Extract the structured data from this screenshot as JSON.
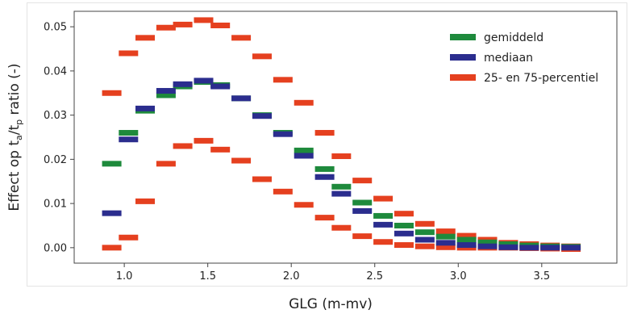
{
  "chart_data": {
    "type": "scatter",
    "marker": "horizontal-bar",
    "xlabel": "GLG (m-mv)",
    "ylabel_parts": [
      "Effect op t",
      "a",
      "/t",
      "p",
      " ratio (-)"
    ],
    "xlim": [
      0.7,
      3.95
    ],
    "ylim": [
      -0.0035,
      0.0535
    ],
    "xticks": [
      "1.0",
      "1.5",
      "2.0",
      "2.5",
      "3.0",
      "3.5"
    ],
    "xtick_values": [
      1.0,
      1.5,
      2.0,
      2.5,
      3.0,
      3.5
    ],
    "yticks": [
      "0.00",
      "0.01",
      "0.02",
      "0.03",
      "0.04",
      "0.05"
    ],
    "ytick_values": [
      0.0,
      0.01,
      0.02,
      0.03,
      0.04,
      0.05
    ],
    "grid": false,
    "legend_position": "top-right",
    "x": [
      0.925,
      1.025,
      1.125,
      1.25,
      1.35,
      1.475,
      1.575,
      1.7,
      1.825,
      1.95,
      2.075,
      2.2,
      2.3,
      2.425,
      2.55,
      2.675,
      2.8,
      2.925,
      3.05,
      3.175,
      3.3,
      3.425,
      3.55,
      3.675
    ],
    "series": [
      {
        "name": "gemiddeld",
        "color": "#1e8a3c",
        "values": [
          0.019,
          0.026,
          0.031,
          0.0345,
          0.0365,
          0.0375,
          0.0368,
          0.0338,
          0.03,
          0.026,
          0.022,
          0.0178,
          0.0138,
          0.0102,
          0.0072,
          0.005,
          0.0035,
          0.0025,
          0.0018,
          0.0012,
          0.0008,
          0.0005,
          0.0003,
          0.0002
        ]
      },
      {
        "name": "mediaan",
        "color": "#2b2d8e",
        "values": [
          0.0078,
          0.0245,
          0.0315,
          0.0355,
          0.037,
          0.0378,
          0.0365,
          0.0338,
          0.0298,
          0.0257,
          0.0208,
          0.016,
          0.0122,
          0.0083,
          0.0052,
          0.0032,
          0.0018,
          0.0011,
          0.0006,
          0.0003,
          0.0001,
          0.0,
          0.0,
          0.0
        ]
      },
      {
        "name": "25- en 75-percentiel",
        "color": "#e5401f",
        "values_upper": [
          0.035,
          0.044,
          0.0475,
          0.0498,
          0.0505,
          0.0515,
          0.0503,
          0.0475,
          0.0433,
          0.038,
          0.0328,
          0.026,
          0.0207,
          0.0152,
          0.0111,
          0.0077,
          0.0054,
          0.0037,
          0.0027,
          0.0018,
          0.0011,
          0.0008,
          0.0005,
          0.0003
        ],
        "values_lower": [
          0.0,
          0.0023,
          0.0105,
          0.019,
          0.023,
          0.0242,
          0.0222,
          0.0197,
          0.0155,
          0.0127,
          0.0097,
          0.0068,
          0.0045,
          0.0026,
          0.0013,
          0.0006,
          0.0003,
          0.0001,
          0.0,
          0.0,
          0.0,
          -0.0001,
          -0.0002,
          -0.0003
        ]
      }
    ]
  }
}
